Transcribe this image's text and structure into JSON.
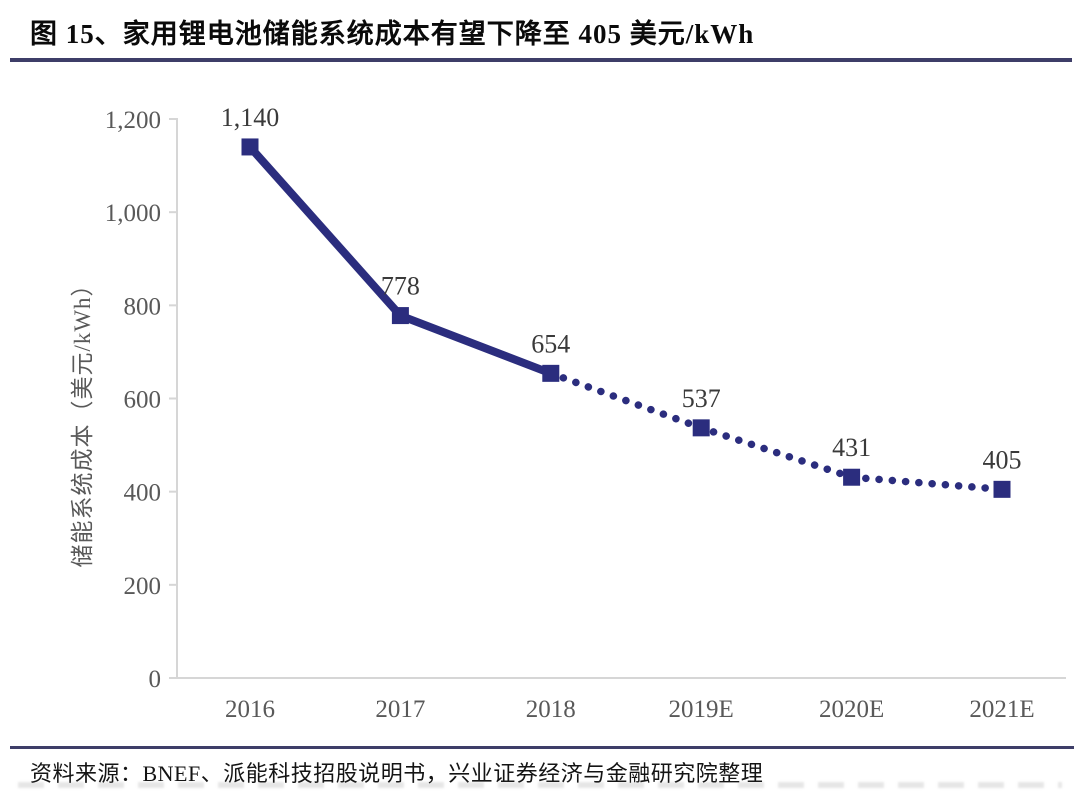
{
  "figure": {
    "title": "图 15、家用锂电池储能系统成本有望下降至 405 美元/kWh",
    "source": "资料来源：BNEF、派能科技招股说明书，兴业证券经济与金融研究院整理"
  },
  "colors": {
    "line": "#2b2d7e",
    "rule": "#3e3e68",
    "axis": "#d6d6d6",
    "tick_text": "#595959",
    "data_label_text": "#3a3a3a"
  },
  "chart_data": {
    "type": "line",
    "categories": [
      "2016",
      "2017",
      "2018",
      "2019E",
      "2020E",
      "2021E"
    ],
    "series": [
      {
        "name": "储能系统成本",
        "values": [
          1140,
          778,
          654,
          537,
          431,
          405
        ]
      }
    ],
    "data_labels": [
      "1,140",
      "778",
      "654",
      "537",
      "431",
      "405"
    ],
    "solid_through_index": 2,
    "line_style_note": "solid for actuals 2016-2018, dotted for estimates 2018-2021E",
    "marker": "square",
    "title": "",
    "xlabel": "",
    "ylabel": "储能系统成本（美元/kWh）",
    "ylim": [
      0,
      1200
    ],
    "ytick_step": 200,
    "ytick_labels": [
      "0",
      "200",
      "400",
      "600",
      "800",
      "1,000",
      "1,200"
    ],
    "grid": false,
    "legend": "none"
  }
}
